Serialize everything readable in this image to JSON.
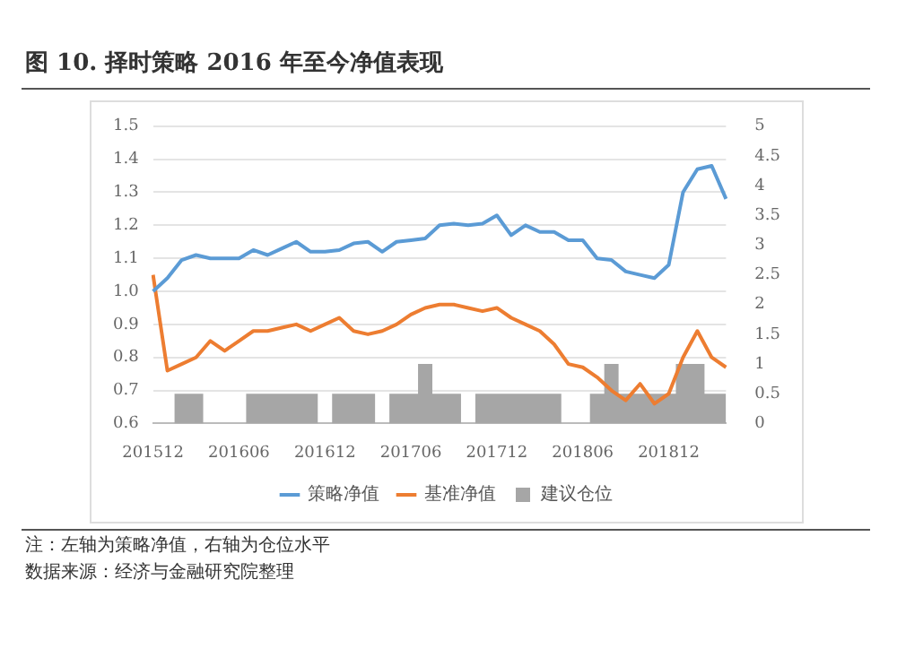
{
  "chart_data": {
    "type": "line",
    "title": "图 10. 择时策略 2016 年至今净值表现",
    "categories": [
      "201512",
      null,
      null,
      null,
      null,
      null,
      "201606",
      null,
      null,
      null,
      null,
      null,
      "201612",
      null,
      null,
      null,
      null,
      null,
      "201706",
      null,
      null,
      null,
      null,
      null,
      "201712",
      null,
      null,
      null,
      null,
      null,
      "201806",
      null,
      null,
      null,
      null,
      null,
      "201812",
      null,
      null,
      null,
      null
    ],
    "series": [
      {
        "name": "建议仓位",
        "type": "area",
        "axis": "y2",
        "color": "#a6a6a6",
        "values": [
          0,
          0,
          0.5,
          0.5,
          0,
          0,
          0,
          0.5,
          0.5,
          0.5,
          0.5,
          0.5,
          0,
          0.5,
          0.5,
          0.5,
          0,
          0.5,
          0.5,
          1,
          0.5,
          0.5,
          0,
          0.5,
          0.5,
          0.5,
          0.5,
          0.5,
          0.5,
          0,
          0,
          0.5,
          1,
          0.5,
          0.5,
          0.5,
          0.5,
          1,
          1,
          0.5,
          0.5
        ]
      },
      {
        "name": "策略净值",
        "color": "#5b9bd5",
        "values": [
          1.0,
          1.04,
          1.095,
          1.11,
          1.1,
          1.1,
          1.1,
          1.125,
          1.11,
          1.13,
          1.15,
          1.12,
          1.12,
          1.125,
          1.145,
          1.15,
          1.12,
          1.15,
          1.155,
          1.16,
          1.2,
          1.205,
          1.2,
          1.205,
          1.23,
          1.17,
          1.2,
          1.18,
          1.18,
          1.155,
          1.155,
          1.1,
          1.095,
          1.06,
          1.05,
          1.04,
          1.08,
          1.3,
          1.37,
          1.38,
          1.28
        ]
      },
      {
        "name": "基准净值",
        "color": "#ed7d31",
        "values": [
          1.05,
          0.76,
          0.78,
          0.8,
          0.85,
          0.82,
          0.85,
          0.88,
          0.88,
          0.89,
          0.9,
          0.88,
          0.9,
          0.92,
          0.88,
          0.87,
          0.88,
          0.9,
          0.93,
          0.95,
          0.96,
          0.96,
          0.95,
          0.94,
          0.95,
          0.92,
          0.9,
          0.88,
          0.84,
          0.78,
          0.77,
          0.74,
          0.7,
          0.67,
          0.72,
          0.66,
          0.69,
          0.8,
          0.88,
          0.8,
          0.77
        ]
      }
    ],
    "ylim": [
      0.6,
      1.5
    ],
    "yticks": [
      0.6,
      0.7,
      0.8,
      0.9,
      {
        "value": 1,
        "label": "1.0"
      },
      1.1,
      1.2,
      1.3,
      1.4,
      1.5
    ],
    "y2lim": [
      0,
      5
    ],
    "y2ticks": [
      0,
      0.5,
      1,
      1.5,
      2,
      2.5,
      3,
      3.5,
      4,
      4.5,
      5
    ],
    "grid": "y",
    "legend": "bottom",
    "annotations": [
      "注：左轴为策略净值，右轴为仓位水平",
      "数据来源：经济与金融研究院整理"
    ]
  }
}
